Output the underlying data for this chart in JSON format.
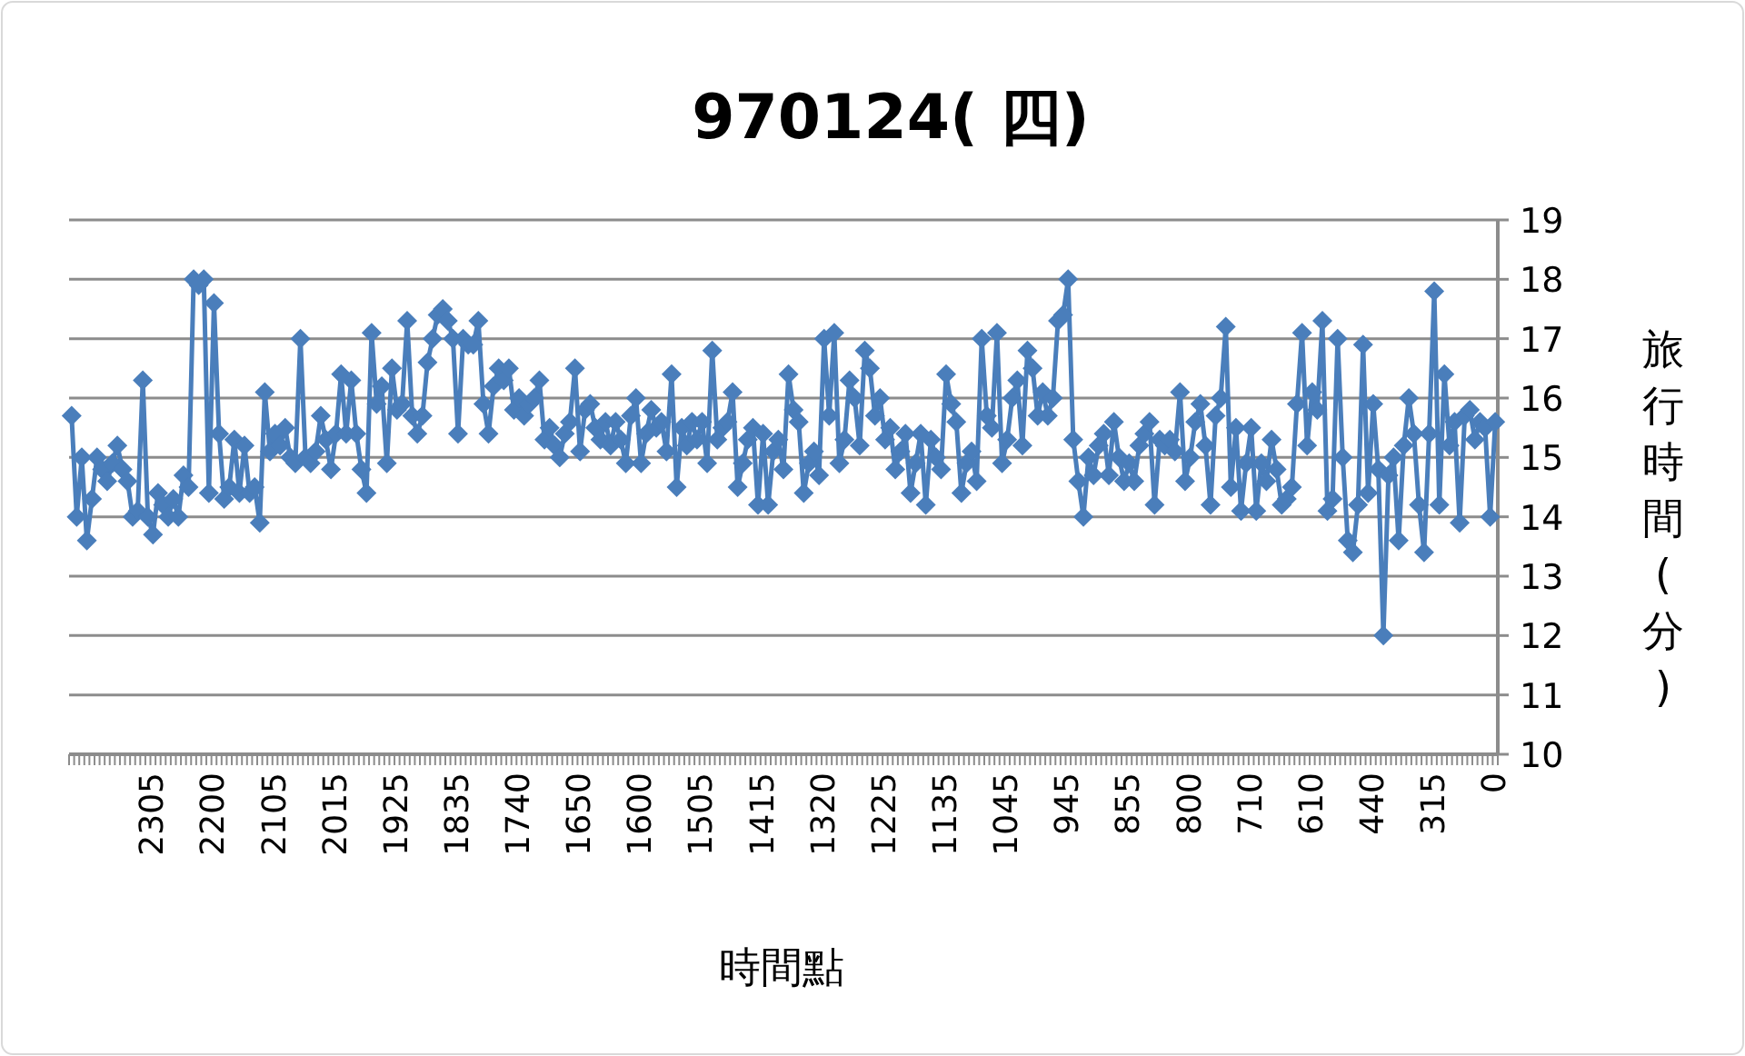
{
  "chart_data": {
    "type": "line",
    "title": "970124( 四)",
    "xlabel": "時間點",
    "ylabel": "旅行時間(分)",
    "categories": [
      null,
      null,
      null,
      null,
      null,
      null,
      null,
      null,
      null,
      null,
      null,
      null,
      null,
      null,
      null,
      null,
      "2305",
      null,
      null,
      null,
      null,
      null,
      null,
      null,
      null,
      null,
      null,
      null,
      "2200",
      null,
      null,
      null,
      null,
      null,
      null,
      null,
      null,
      null,
      null,
      null,
      "2105",
      null,
      null,
      null,
      null,
      null,
      null,
      null,
      null,
      null,
      null,
      null,
      "2015",
      null,
      null,
      null,
      null,
      null,
      null,
      null,
      null,
      null,
      null,
      null,
      "1925",
      null,
      null,
      null,
      null,
      null,
      null,
      null,
      null,
      null,
      null,
      null,
      "1835",
      null,
      null,
      null,
      null,
      null,
      null,
      null,
      null,
      null,
      null,
      null,
      "1740",
      null,
      null,
      null,
      null,
      null,
      null,
      null,
      null,
      null,
      null,
      null,
      "1650",
      null,
      null,
      null,
      null,
      null,
      null,
      null,
      null,
      null,
      null,
      null,
      "1600",
      null,
      null,
      null,
      null,
      null,
      null,
      null,
      null,
      null,
      null,
      null,
      "1505",
      null,
      null,
      null,
      null,
      null,
      null,
      null,
      null,
      null,
      null,
      null,
      "1415",
      null,
      null,
      null,
      null,
      null,
      null,
      null,
      null,
      null,
      null,
      null,
      "1320",
      null,
      null,
      null,
      null,
      null,
      null,
      null,
      null,
      null,
      null,
      null,
      "1225",
      null,
      null,
      null,
      null,
      null,
      null,
      null,
      null,
      null,
      null,
      null,
      "1135",
      null,
      null,
      null,
      null,
      null,
      null,
      null,
      null,
      null,
      null,
      null,
      "1045",
      null,
      null,
      null,
      null,
      null,
      null,
      null,
      null,
      null,
      null,
      null,
      "945",
      null,
      null,
      null,
      null,
      null,
      null,
      null,
      null,
      null,
      null,
      null,
      "855",
      null,
      null,
      null,
      null,
      null,
      null,
      null,
      null,
      null,
      null,
      null,
      "800",
      null,
      null,
      null,
      null,
      null,
      null,
      null,
      null,
      null,
      null,
      null,
      "710",
      null,
      null,
      null,
      null,
      null,
      null,
      null,
      null,
      null,
      null,
      null,
      "610",
      null,
      null,
      null,
      null,
      null,
      null,
      null,
      null,
      null,
      null,
      null,
      "440",
      null,
      null,
      null,
      null,
      null,
      null,
      null,
      null,
      null,
      null,
      null,
      "315",
      null,
      null,
      null,
      null,
      null,
      null,
      null,
      null,
      null,
      null,
      null,
      "0"
    ],
    "values": [
      15.7,
      14.0,
      15.0,
      13.6,
      14.3,
      15.0,
      14.8,
      14.6,
      14.9,
      15.2,
      14.8,
      14.6,
      14.0,
      14.1,
      16.3,
      14.0,
      13.7,
      14.4,
      14.2,
      14.0,
      14.3,
      14.0,
      14.7,
      14.5,
      18.0,
      17.9,
      18.0,
      14.4,
      17.6,
      15.4,
      14.3,
      14.5,
      15.3,
      14.4,
      15.2,
      14.4,
      14.5,
      13.9,
      16.1,
      15.1,
      15.4,
      15.2,
      15.5,
      15.0,
      14.9,
      17.0,
      15.0,
      14.9,
      15.1,
      15.7,
      15.3,
      14.8,
      15.4,
      16.4,
      15.4,
      16.3,
      15.4,
      14.8,
      14.4,
      17.1,
      15.9,
      16.2,
      14.9,
      16.5,
      15.8,
      15.9,
      17.3,
      15.7,
      15.4,
      15.7,
      16.6,
      17.0,
      17.4,
      17.5,
      17.3,
      17.0,
      15.4,
      17.0,
      16.9,
      16.9,
      17.3,
      15.9,
      15.4,
      16.2,
      16.5,
      16.3,
      16.5,
      15.8,
      16.0,
      15.7,
      15.9,
      16.0,
      16.3,
      15.3,
      15.5,
      15.2,
      15.0,
      15.4,
      15.6,
      16.5,
      15.1,
      15.8,
      15.9,
      15.5,
      15.3,
      15.6,
      15.2,
      15.6,
      15.3,
      14.9,
      15.7,
      16.0,
      14.9,
      15.4,
      15.8,
      15.5,
      15.6,
      15.1,
      16.4,
      14.5,
      15.5,
      15.2,
      15.6,
      15.3,
      15.6,
      14.9,
      16.8,
      15.3,
      15.5,
      15.6,
      16.1,
      14.5,
      14.9,
      15.3,
      15.5,
      14.2,
      15.4,
      14.2,
      15.1,
      15.3,
      14.8,
      16.4,
      15.8,
      15.6,
      14.4,
      14.9,
      15.1,
      14.7,
      17.0,
      15.7,
      17.1,
      14.9,
      15.3,
      16.3,
      16.0,
      15.2,
      16.8,
      16.5,
      15.7,
      16.0,
      15.3,
      15.5,
      14.8,
      15.1,
      15.4,
      14.4,
      14.9,
      15.4,
      14.2,
      15.3,
      15.0,
      14.8,
      16.4,
      15.9,
      15.6,
      14.4,
      14.9,
      15.1,
      14.6,
      17.0,
      15.7,
      15.5,
      17.1,
      14.9,
      15.3,
      16.0,
      16.3,
      15.2,
      16.8,
      16.5,
      15.7,
      16.1,
      15.7,
      16.0,
      17.3,
      17.4,
      18.0,
      15.3,
      14.6,
      14.0,
      15.0,
      14.7,
      15.2,
      15.4,
      14.7,
      15.6,
      15.0,
      14.6,
      14.9,
      14.6,
      15.2,
      15.4,
      15.6,
      14.2,
      15.3,
      15.2,
      15.3,
      15.1,
      16.1,
      14.6,
      15.0,
      15.6,
      15.9,
      15.2,
      14.2,
      15.7,
      16.0,
      17.2,
      14.5,
      15.5,
      14.1,
      14.9,
      15.5,
      14.1,
      14.9,
      14.6,
      15.3,
      14.8,
      14.2,
      14.3,
      14.5,
      15.9,
      17.1,
      15.2,
      16.1,
      15.8,
      17.3,
      14.1,
      14.3,
      17.0,
      15.0,
      13.6,
      13.4,
      14.2,
      16.9,
      14.4,
      15.9,
      14.8,
      12.0,
      14.7,
      15.0,
      13.6,
      15.2,
      16.0,
      15.4,
      14.2,
      13.4,
      15.4,
      17.8,
      14.2,
      16.4,
      15.2,
      15.6,
      13.9,
      15.7,
      15.8,
      15.3,
      15.6,
      15.5,
      14.0,
      15.6
    ],
    "color": "#4a7ebb",
    "ylim": [
      10,
      19
    ],
    "yticks": [
      10,
      11,
      12,
      13,
      14,
      15,
      16,
      17,
      18,
      19
    ],
    "grid": "y",
    "marker": "diamond",
    "line_style": "solid"
  }
}
